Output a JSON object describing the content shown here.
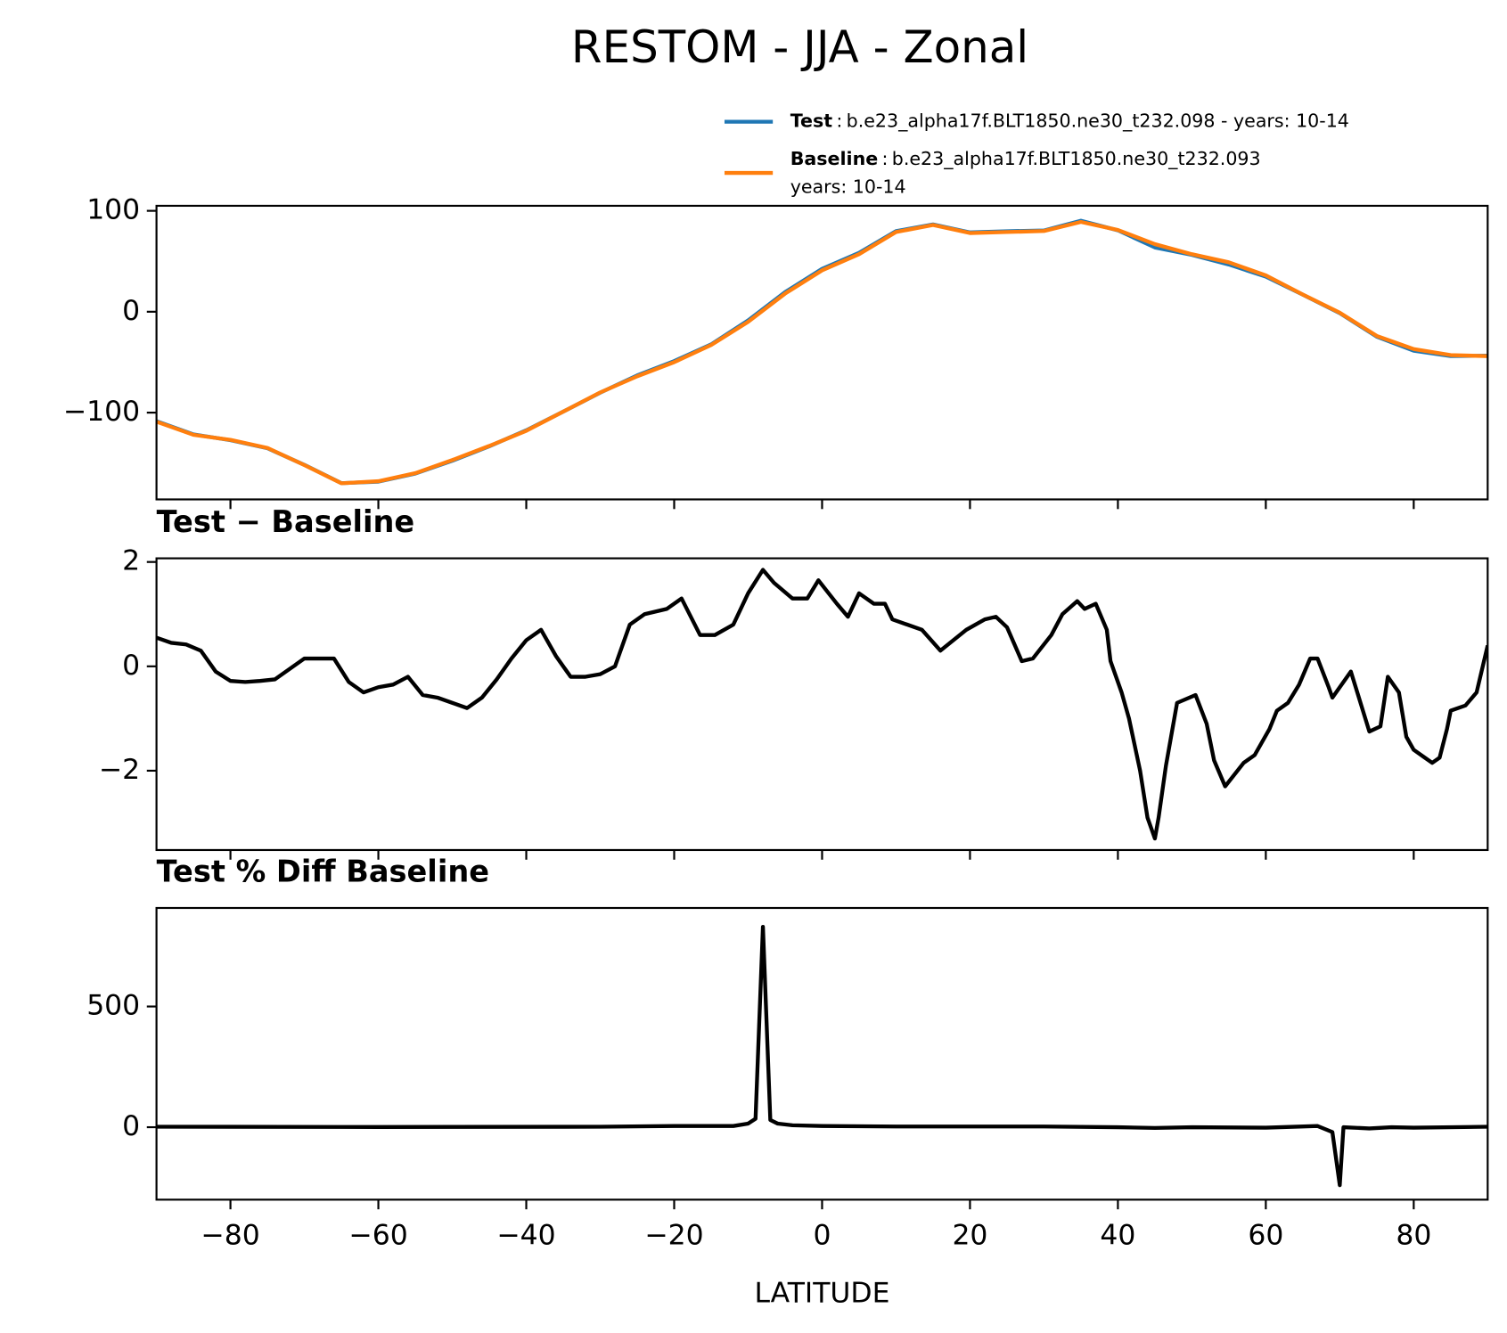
{
  "title": "RESTOM - JJA - Zonal",
  "legend_separator": ":",
  "chart_data": [
    {
      "type": "line",
      "x": [
        -90,
        -85,
        -80,
        -75,
        -70,
        -65,
        -60,
        -55,
        -50,
        -45,
        -40,
        -35,
        -30,
        -25,
        -20,
        -15,
        -10,
        -5,
        0,
        5,
        10,
        15,
        20,
        25,
        30,
        35,
        40,
        45,
        50,
        55,
        60,
        65,
        70,
        75,
        80,
        85,
        90
      ],
      "series": [
        {
          "name": "Test",
          "label_lines": [
            "b.e23_alpha17f.BLT1850.ne30_t232.098 - years: 10-14"
          ],
          "color": "#1f77b4",
          "values": [
            -108.5,
            -121.6,
            -127.3,
            -135.3,
            -151.8,
            -169.9,
            -168.4,
            -160.4,
            -147.7,
            -133.4,
            -117.5,
            -99,
            -80.2,
            -63.1,
            -48.9,
            -32.4,
            -8.6,
            19.4,
            42.5,
            58.4,
            79.9,
            86.5,
            78.6,
            79.8,
            80.5,
            90.2,
            80.7,
            63.7,
            56.4,
            46.8,
            34.8,
            16.9,
            -1.4,
            -24.7,
            -38.6,
            -43.9,
            -43.6
          ]
        },
        {
          "name": "Baseline",
          "label_lines": [
            "b.e23_alpha17f.BLT1850.ne30_t232.093",
            "years: 10-14"
          ],
          "color": "#ff7f0e",
          "values": [
            -109,
            -122,
            -127,
            -135,
            -152,
            -170,
            -168,
            -160,
            -147,
            -133,
            -118,
            -99,
            -80,
            -64,
            -50,
            -33,
            -10,
            18,
            41,
            57,
            79,
            86,
            78,
            79,
            80,
            89,
            81,
            67,
            57,
            49,
            36,
            17,
            -1,
            -24,
            -37,
            -43,
            -44
          ]
        }
      ],
      "xlim": [
        -90,
        90
      ],
      "xticks": [
        -80,
        -60,
        -40,
        -20,
        0,
        20,
        40,
        60,
        80
      ],
      "ylim": [
        -186,
        105
      ],
      "yticks": [
        {
          "value": -100,
          "label": "−100"
        },
        0,
        100
      ]
    },
    {
      "type": "line",
      "title": "Test − Baseline",
      "x": [
        -90,
        -88,
        -86,
        -84,
        -82,
        -80,
        -78,
        -76,
        -74,
        -72,
        -70,
        -68,
        -66,
        -64,
        -62,
        -60,
        -58,
        -56,
        -54,
        -52,
        -50,
        -48,
        -46,
        -44,
        -42,
        -40,
        -38,
        -36,
        -34,
        -32,
        -30,
        -28,
        -26,
        -24,
        -21,
        -19,
        -16.5,
        -14.5,
        -12,
        -10,
        -8,
        -6.5,
        -4,
        -2,
        -0.5,
        2,
        3.5,
        5,
        7,
        8.5,
        9.5,
        11.5,
        13.5,
        16,
        19.5,
        22,
        23.5,
        25,
        27,
        28.5,
        31,
        32.5,
        34.5,
        35.5,
        37,
        38.5,
        39,
        40.5,
        41.5,
        43,
        44,
        45,
        45.5,
        46.5,
        48,
        50.5,
        52,
        53,
        54.5,
        57,
        58.5,
        60.5,
        61.5,
        63,
        64.5,
        66,
        67,
        68.5,
        69,
        70,
        71.5,
        74,
        75.5,
        76.5,
        78,
        79,
        80,
        81.5,
        82.5,
        83.5,
        84.5,
        85,
        87,
        88.5,
        90
      ],
      "series": [
        {
          "name": "Test − Baseline",
          "color": "#000000",
          "values": [
            0.55,
            0.45,
            0.42,
            0.3,
            -0.1,
            -0.28,
            -0.3,
            -0.28,
            -0.25,
            -0.05,
            0.15,
            0.15,
            0.15,
            -0.3,
            -0.5,
            -0.4,
            -0.35,
            -0.2,
            -0.55,
            -0.6,
            -0.7,
            -0.8,
            -0.6,
            -0.25,
            0.15,
            0.5,
            0.7,
            0.2,
            -0.2,
            -0.2,
            -0.15,
            0,
            0.8,
            1.0,
            1.1,
            1.3,
            0.6,
            0.6,
            0.8,
            1.4,
            1.85,
            1.6,
            1.3,
            1.3,
            1.65,
            1.2,
            0.95,
            1.4,
            1.2,
            1.2,
            0.9,
            0.8,
            0.7,
            0.3,
            0.7,
            0.9,
            0.95,
            0.75,
            0.1,
            0.15,
            0.6,
            1.0,
            1.25,
            1.1,
            1.2,
            0.7,
            0.1,
            -0.5,
            -1.0,
            -2.0,
            -2.9,
            -3.3,
            -2.9,
            -1.9,
            -0.7,
            -0.55,
            -1.1,
            -1.8,
            -2.3,
            -1.85,
            -1.7,
            -1.2,
            -0.85,
            -0.7,
            -0.35,
            0.15,
            0.15,
            -0.4,
            -0.6,
            -0.4,
            -0.1,
            -1.25,
            -1.15,
            -0.2,
            -0.5,
            -1.35,
            -1.6,
            -1.75,
            -1.85,
            -1.75,
            -1.2,
            -0.85,
            -0.75,
            -0.5,
            0.4
          ]
        }
      ],
      "xlim": [
        -90,
        90
      ],
      "xticks": [
        -80,
        -60,
        -40,
        -20,
        0,
        20,
        40,
        60,
        80
      ],
      "ylim": [
        -3.52,
        2.07
      ],
      "yticks": [
        {
          "value": -2,
          "label": "−2"
        },
        0,
        2
      ]
    },
    {
      "type": "line",
      "title": "Test % Diff Baseline",
      "xlabel": "LATITUDE",
      "x": [
        -90,
        -60,
        -30,
        -20,
        -12,
        -10,
        -9,
        -8,
        -7,
        -6,
        -4,
        0,
        10,
        30,
        40,
        45,
        50,
        60,
        67,
        69,
        70,
        70.5,
        74,
        77,
        80,
        90
      ],
      "series": [
        {
          "name": "Test % Diff Baseline",
          "color": "#000000",
          "values": [
            2,
            1,
            2,
            5,
            5,
            15,
            35,
            830,
            30,
            15,
            8,
            5,
            3,
            3,
            0,
            -3,
            0,
            -2,
            5,
            -20,
            -240,
            0,
            -5,
            0,
            -2,
            2
          ]
        }
      ],
      "xlim": [
        -90,
        90
      ],
      "xticks": [
        {
          "value": -80,
          "label": "−80"
        },
        {
          "value": -60,
          "label": "−60"
        },
        {
          "value": -40,
          "label": "−40"
        },
        {
          "value": -20,
          "label": "−20"
        },
        0,
        20,
        40,
        60,
        80
      ],
      "ylim": [
        -300,
        908
      ],
      "yticks": [
        0,
        500
      ]
    }
  ]
}
